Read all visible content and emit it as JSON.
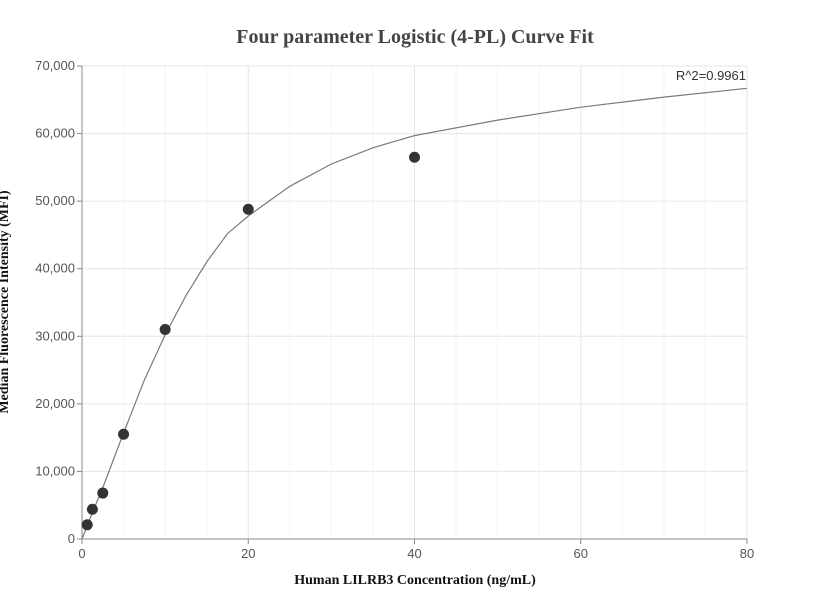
{
  "chart_data": {
    "type": "scatter",
    "title": "Four parameter Logistic (4-PL) Curve Fit",
    "xlabel": "Human LILRB3 Concentration (ng/mL)",
    "ylabel": "Median Fluorescence Intensity (MFI)",
    "xlim": [
      0,
      80
    ],
    "ylim": [
      0,
      70000
    ],
    "x_ticks": [
      0,
      20,
      40,
      60,
      80
    ],
    "y_ticks": [
      0,
      10000,
      20000,
      30000,
      40000,
      50000,
      60000,
      70000
    ],
    "x_tick_labels": [
      "0",
      "20",
      "40",
      "60",
      "80"
    ],
    "y_tick_labels": [
      "0",
      "10,000",
      "20,000",
      "30,000",
      "40,000",
      "50,000",
      "60,000",
      "70,000"
    ],
    "grid": true,
    "legend": "none",
    "annotation": "R^2=0.9961",
    "points": [
      {
        "x": 0.625,
        "y": 2100
      },
      {
        "x": 1.25,
        "y": 4400
      },
      {
        "x": 2.5,
        "y": 6800
      },
      {
        "x": 5,
        "y": 15500
      },
      {
        "x": 10,
        "y": 31000
      },
      {
        "x": 20,
        "y": 48800
      },
      {
        "x": 40,
        "y": 56500
      }
    ],
    "fit_curve": {
      "x": [
        0,
        1.25,
        2.5,
        5,
        7.5,
        10,
        12.5,
        15,
        17.5,
        20,
        25,
        30,
        35,
        40,
        50,
        60,
        70,
        80
      ],
      "y": [
        0,
        3900,
        7600,
        15700,
        23500,
        30200,
        36000,
        41000,
        45200,
        47800,
        52200,
        55500,
        57900,
        59700,
        62000,
        63900,
        65400,
        66700
      ]
    },
    "colors": {
      "marker": "#333333",
      "curve": "#7a7a7a",
      "grid_major": "#e6e6e6",
      "grid_minor": "#f3f3f3",
      "axis": "#888888"
    }
  }
}
